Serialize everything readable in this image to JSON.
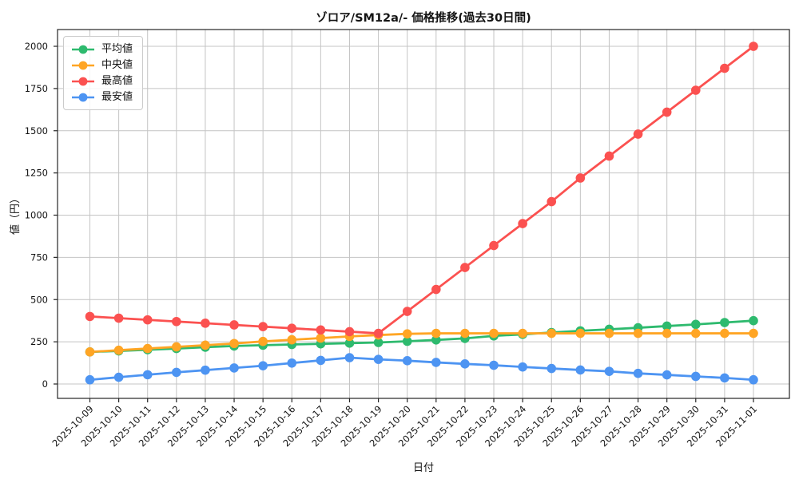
{
  "chart_data": {
    "type": "line",
    "title": "ゾロア/SM12a/- 価格推移(過去30日間)",
    "xlabel": "日付",
    "ylabel": "値（円）",
    "categories": [
      "2025-10-09",
      "2025-10-10",
      "2025-10-11",
      "2025-10-12",
      "2025-10-13",
      "2025-10-14",
      "2025-10-15",
      "2025-10-16",
      "2025-10-17",
      "2025-10-18",
      "2025-10-19",
      "2025-10-20",
      "2025-10-21",
      "2025-10-22",
      "2025-10-23",
      "2025-10-24",
      "2025-10-25",
      "2025-10-26",
      "2025-10-27",
      "2025-10-28",
      "2025-10-29",
      "2025-10-30",
      "2025-10-31",
      "2025-11-01"
    ],
    "series": [
      {
        "name": "平均値",
        "color": "#2eba6e",
        "values": [
          190,
          196,
          203,
          210,
          218,
          225,
          230,
          234,
          238,
          242,
          246,
          253,
          261,
          270,
          285,
          294,
          305,
          315,
          324,
          333,
          343,
          353,
          364,
          375
        ]
      },
      {
        "name": "中央値",
        "color": "#ffa524",
        "values": [
          190,
          200,
          210,
          220,
          230,
          240,
          252,
          262,
          272,
          282,
          290,
          297,
          300,
          300,
          300,
          300,
          300,
          300,
          300,
          300,
          300,
          300,
          300,
          300
        ]
      },
      {
        "name": "最高値",
        "color": "#fb5150",
        "values": [
          400,
          390,
          380,
          370,
          360,
          350,
          340,
          330,
          320,
          310,
          300,
          430,
          560,
          690,
          820,
          950,
          1080,
          1220,
          1350,
          1480,
          1610,
          1740,
          1870,
          2000
        ]
      },
      {
        "name": "最安値",
        "color": "#4d94f2",
        "values": [
          25,
          40,
          55,
          69,
          82,
          95,
          108,
          124,
          140,
          156,
          146,
          138,
          128,
          119,
          111,
          101,
          92,
          83,
          75,
          63,
          54,
          45,
          36,
          25
        ]
      }
    ],
    "yticks": [
      0,
      250,
      500,
      750,
      1000,
      1250,
      1500,
      1750,
      2000
    ],
    "ylim": [
      -75,
      2100
    ],
    "grid": true,
    "grid_color": "#c4c4c4",
    "spine_color": "#262626",
    "legend_position": "upper left",
    "background": "#ffffff"
  }
}
